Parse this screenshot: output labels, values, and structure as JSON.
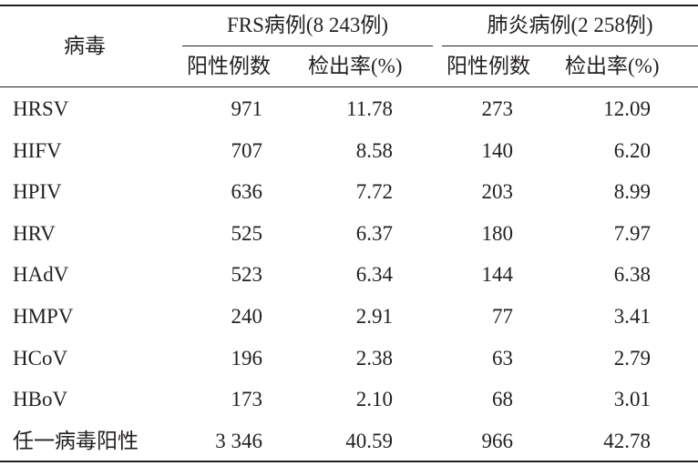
{
  "header": {
    "virus_col": "病毒",
    "groups": [
      {
        "label": "FRS病例(8 243例)",
        "cols": [
          "阳性例数",
          "检出率(%)"
        ]
      },
      {
        "label": "肺炎病例(2 258例)",
        "cols": [
          "阳性例数",
          "检出率(%)"
        ]
      }
    ]
  },
  "rows": [
    {
      "virus": "HRSV",
      "v": [
        "971",
        "11.78",
        "273",
        "12.09"
      ]
    },
    {
      "virus": "HIFV",
      "v": [
        "707",
        "8.58",
        "140",
        "6.20"
      ]
    },
    {
      "virus": "HPIV",
      "v": [
        "636",
        "7.72",
        "203",
        "8.99"
      ]
    },
    {
      "virus": "HRV",
      "v": [
        "525",
        "6.37",
        "180",
        "7.97"
      ]
    },
    {
      "virus": "HAdV",
      "v": [
        "523",
        "6.34",
        "144",
        "6.38"
      ]
    },
    {
      "virus": "HMPV",
      "v": [
        "240",
        "2.91",
        "77",
        "3.41"
      ]
    },
    {
      "virus": "HCoV",
      "v": [
        "196",
        "2.38",
        "63",
        "2.79"
      ]
    },
    {
      "virus": "HBoV",
      "v": [
        "173",
        "2.10",
        "68",
        "3.01"
      ]
    },
    {
      "virus": "任一病毒阳性",
      "v": [
        "3 346",
        "40.59",
        "966",
        "42.78"
      ]
    }
  ]
}
